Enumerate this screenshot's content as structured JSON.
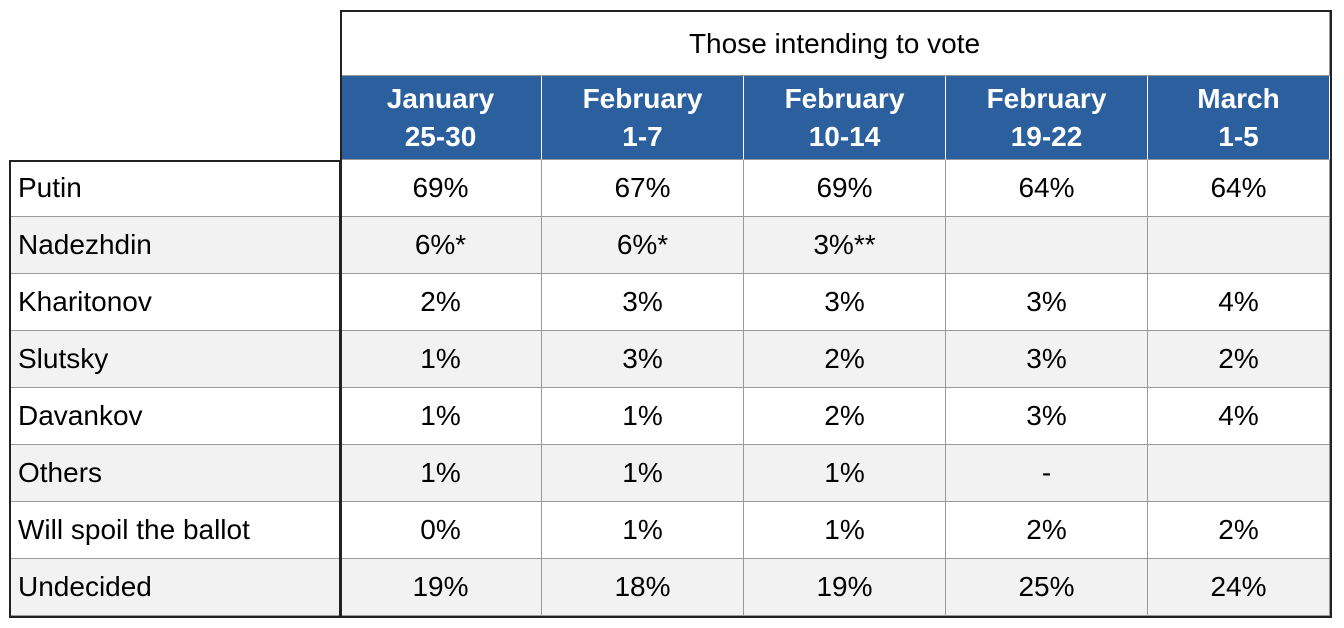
{
  "header": {
    "title": "Those intending to vote"
  },
  "table": {
    "columns": [
      [
        "January",
        "25-30"
      ],
      [
        "February",
        "1-7"
      ],
      [
        "February",
        "10-14"
      ],
      [
        "February",
        "19-22"
      ],
      [
        "March",
        "1-5"
      ]
    ],
    "rows": [
      {
        "label": "Putin",
        "cells": [
          "69%",
          "67%",
          "69%",
          "64%",
          "64%"
        ]
      },
      {
        "label": "Nadezhdin",
        "cells": [
          "6%*",
          "6%*",
          "3%**",
          null,
          null
        ]
      },
      {
        "label": "Kharitonov",
        "cells": [
          "2%",
          "3%",
          "3%",
          "3%",
          "4%"
        ]
      },
      {
        "label": "Slutsky",
        "cells": [
          "1%",
          "3%",
          "2%",
          "3%",
          "2%"
        ]
      },
      {
        "label": "Davankov",
        "cells": [
          "1%",
          "1%",
          "2%",
          "3%",
          "4%"
        ]
      },
      {
        "label": "Others",
        "cells": [
          "1%",
          "1%",
          "1%",
          "-",
          null
        ]
      },
      {
        "label": "Will spoil the ballot",
        "cells": [
          "0%",
          "1%",
          "1%",
          "2%",
          "2%"
        ]
      },
      {
        "label": "Undecided",
        "cells": [
          "19%",
          "18%",
          "19%",
          "25%",
          "24%"
        ]
      }
    ]
  }
}
